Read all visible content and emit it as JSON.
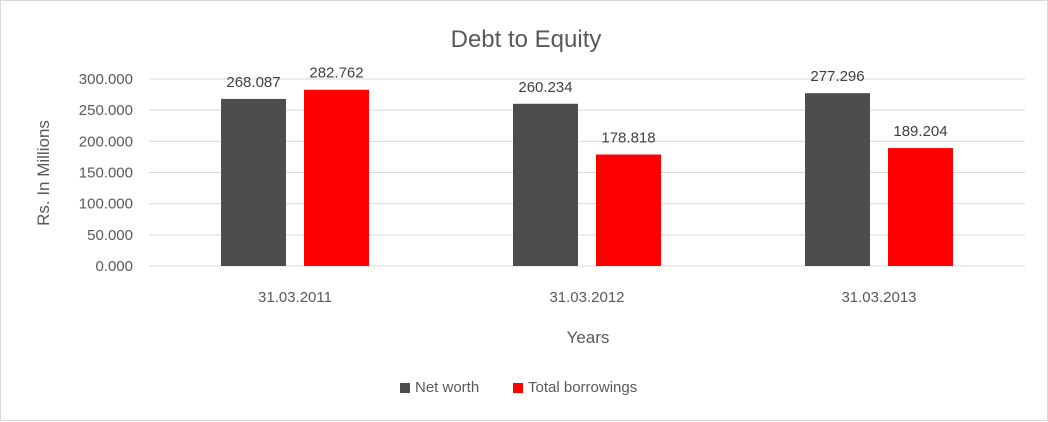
{
  "chart_data": {
    "type": "bar",
    "title": "Debt to Equity",
    "xlabel": "Years",
    "ylabel": "Rs. In Millions",
    "categories": [
      "31.03.2011",
      "31.03.2012",
      "31.03.2013"
    ],
    "series": [
      {
        "name": "Net worth",
        "values": [
          268.087,
          260.234,
          277.296
        ],
        "color": "#4d4d4d"
      },
      {
        "name": "Total borrowings",
        "values": [
          282.762,
          178.818,
          189.204
        ],
        "color": "#ff0000"
      }
    ],
    "data_labels": [
      [
        "268.087",
        "260.234",
        "277.296"
      ],
      [
        "282.762",
        "178.818",
        "189.204"
      ]
    ],
    "ylim": [
      0,
      300
    ],
    "yticks": [
      0,
      50,
      100,
      150,
      200,
      250,
      300
    ],
    "ytick_labels": [
      "0.000",
      "50.000",
      "100.000",
      "150.000",
      "200.000",
      "250.000",
      "300.000"
    ],
    "grid": true,
    "legend_position": "bottom"
  }
}
